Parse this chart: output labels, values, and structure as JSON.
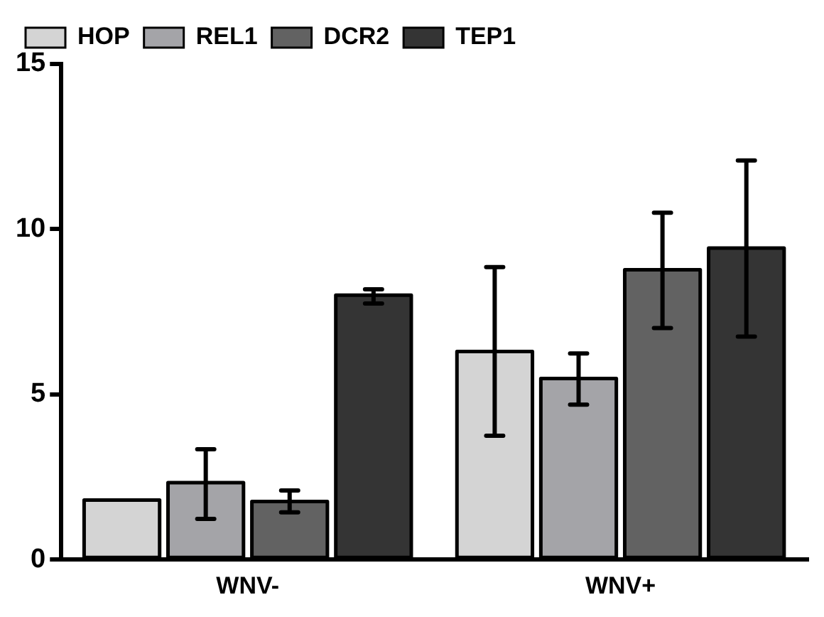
{
  "chart_data": {
    "type": "bar",
    "categories": [
      "WNV-",
      "WNV+"
    ],
    "series": [
      {
        "name": "HOP",
        "color": "#d4d4d4",
        "values": [
          1.8,
          6.3
        ],
        "errors": [
          null,
          [
            3.75,
            8.85
          ]
        ]
      },
      {
        "name": "REL1",
        "color": "#a4a4a8",
        "values": [
          2.33,
          5.48
        ],
        "errors": [
          [
            1.23,
            3.34
          ],
          [
            4.69,
            6.24
          ]
        ]
      },
      {
        "name": "DCR2",
        "color": "#626262",
        "values": [
          1.76,
          8.77
        ],
        "errors": [
          [
            1.43,
            2.09
          ],
          [
            7.01,
            10.5
          ]
        ]
      },
      {
        "name": "TEP1",
        "color": "#343434",
        "values": [
          8.0,
          9.43
        ],
        "errors": [
          [
            7.75,
            8.18
          ],
          [
            6.75,
            12.08
          ]
        ]
      }
    ],
    "ylim": [
      0,
      15
    ],
    "yticks": [
      0,
      5,
      10,
      15
    ],
    "grid": false,
    "legend": "top"
  }
}
